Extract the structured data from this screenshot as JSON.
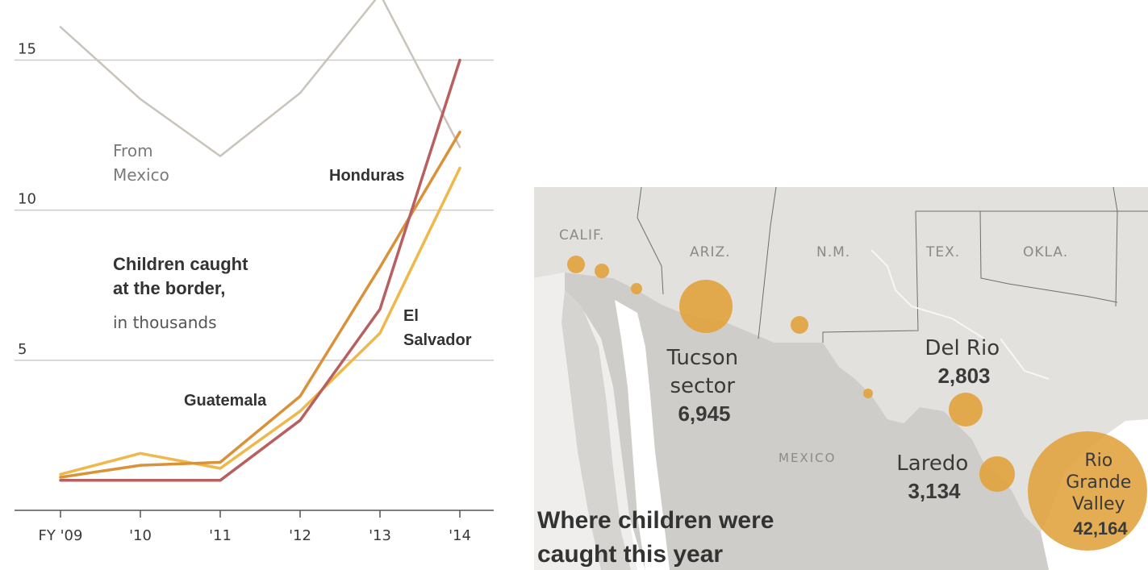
{
  "chart_data": [
    {
      "type": "line",
      "title": "Children caught at the border,",
      "subtitle": "in thousands",
      "x": [
        "FY '09",
        "'10",
        "'11",
        "'12",
        "'13",
        "'14"
      ],
      "ylim": [
        0,
        17
      ],
      "yticks": [
        5,
        10,
        15
      ],
      "grid": true,
      "series": [
        {
          "name": "From Mexico",
          "label_lines": [
            "From",
            "Mexico"
          ],
          "color": "#c9c4bb",
          "values": [
            16.1,
            13.7,
            11.8,
            13.9,
            17.2,
            12.1
          ]
        },
        {
          "name": "Honduras",
          "label_lines": [
            "Honduras"
          ],
          "color": "#b86060",
          "values": [
            1.0,
            1.0,
            1.0,
            3.0,
            6.7,
            15.0
          ]
        },
        {
          "name": "Guatemala",
          "label_lines": [
            "Guatemala"
          ],
          "color": "#d9923a",
          "values": [
            1.1,
            1.5,
            1.6,
            3.8,
            8.1,
            12.6
          ]
        },
        {
          "name": "El Salvador",
          "label_lines": [
            "El",
            "Salvador"
          ],
          "color": "#efb84a",
          "values": [
            1.2,
            1.9,
            1.4,
            3.3,
            5.9,
            11.4
          ]
        }
      ]
    },
    {
      "type": "map",
      "title": "Where children were caught this year",
      "title_lines": [
        "Where children were",
        "caught this year"
      ],
      "region_labels": [
        "CALIF.",
        "ARIZ.",
        "N.M.",
        "TEX.",
        "OKLA.",
        "MEXICO"
      ],
      "bubble_color": "#e0a23c",
      "sectors": [
        {
          "name": "Tucson sector",
          "name_lines": [
            "Tucson",
            "sector"
          ],
          "value": 6945,
          "display": "6,945"
        },
        {
          "name": "Del Rio",
          "name_lines": [
            "Del Rio"
          ],
          "value": 2803,
          "display": "2,803"
        },
        {
          "name": "Laredo",
          "name_lines": [
            "Laredo"
          ],
          "value": 3134,
          "display": "3,134"
        },
        {
          "name": "Rio Grande Valley",
          "name_lines": [
            "Rio",
            "Grande",
            "Valley"
          ],
          "value": 42164,
          "display": "42,164"
        }
      ]
    }
  ]
}
